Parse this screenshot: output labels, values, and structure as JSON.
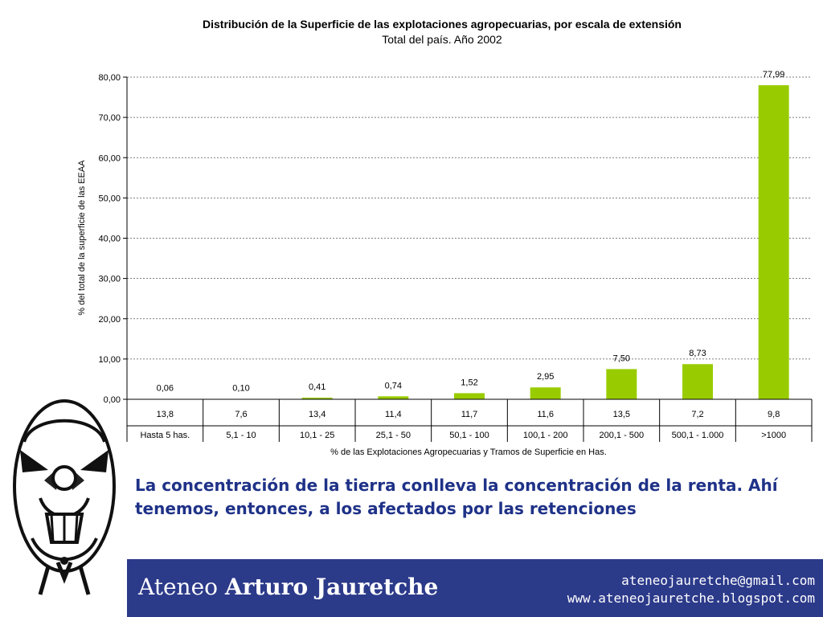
{
  "chart_data": {
    "type": "bar",
    "title": "Distribución de la Superficie de las explotaciones agropecuarias, por escala de extensión",
    "subtitle": "Total del país. Año 2002",
    "ylabel": "% del total de la superficie de las EEAA",
    "xlabel": "% de las Explotaciones Agropecuarias y Tramos de Superficie en Has.",
    "ylim": [
      0,
      80
    ],
    "y_ticks": [
      "0,00",
      "10,00",
      "20,00",
      "30,00",
      "40,00",
      "50,00",
      "60,00",
      "70,00",
      "80,00"
    ],
    "categories": [
      "Hasta 5 has.",
      "5,1 - 10",
      "10,1 - 25",
      "25,1 - 50",
      "50,1 - 100",
      "100,1 - 200",
      "200,1 - 500",
      "500,1 - 1.000",
      ">1000"
    ],
    "values": [
      0.06,
      0.1,
      0.41,
      0.74,
      1.52,
      2.95,
      7.5,
      8.73,
      77.99
    ],
    "value_labels": [
      "0,06",
      "0,10",
      "0,41",
      "0,74",
      "1,52",
      "2,95",
      "7,50",
      "8,73",
      "77,99"
    ],
    "pct_explotaciones": [
      "13,8",
      "7,6",
      "13,4",
      "11,4",
      "11,7",
      "11,6",
      "13,5",
      "7,2",
      "9,8"
    ],
    "bar_color": "#99cc00",
    "grid": true,
    "legend": "none"
  },
  "caption": "La concentración de la tierra conlleva la concentración de la renta. Ahí tenemos, entonces, a los afectados por las retenciones",
  "footer": {
    "brand_light": "Ateneo",
    "brand_bold": "Arturo Jauretche",
    "email": "ateneojauretche@gmail.com",
    "website": "www.ateneojauretche.blogspot.com",
    "background_color": "#2c3a8a"
  }
}
